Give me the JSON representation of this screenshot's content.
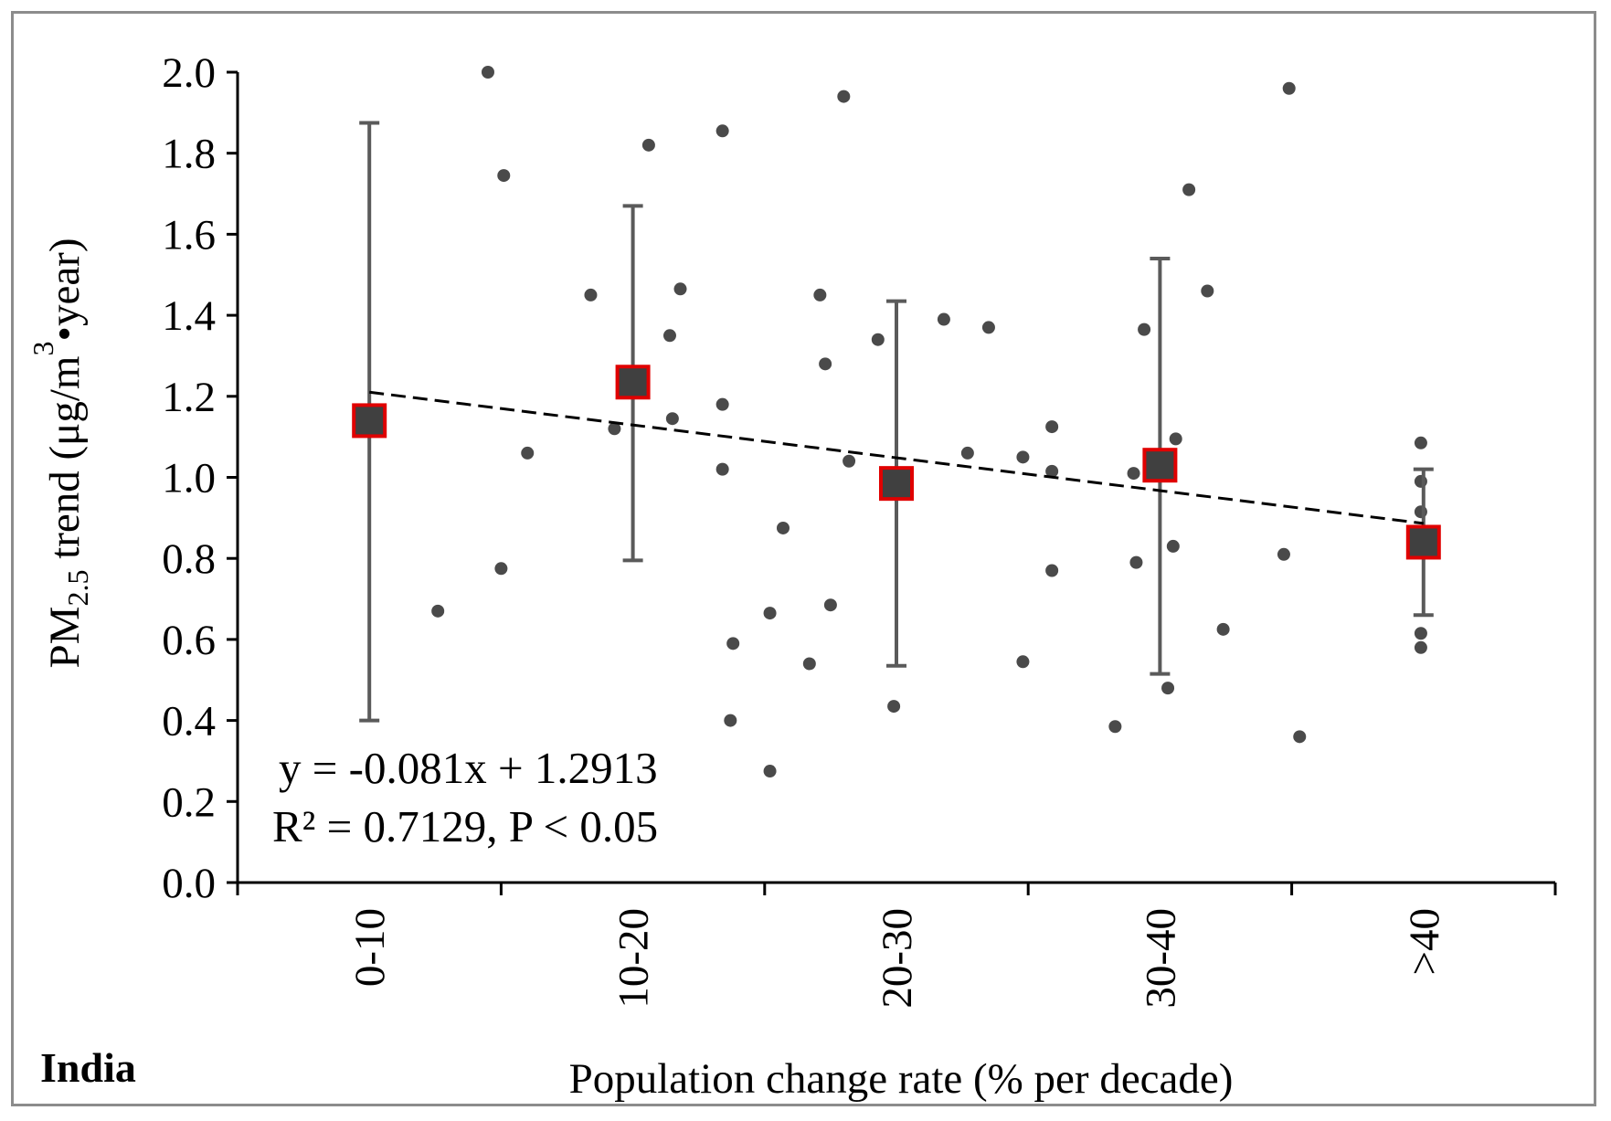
{
  "chart_data": {
    "type": "scatter",
    "region_label": "India",
    "ylabel_parts": [
      "PM",
      "2.5",
      " trend (μg/m",
      "3",
      "•year)"
    ],
    "xlabel": "Population change rate (% per decade)",
    "ylim": [
      0,
      2.0
    ],
    "yticks": [
      0.0,
      0.2,
      0.4,
      0.6,
      0.8,
      1.0,
      1.2,
      1.4,
      1.6,
      1.8,
      2.0
    ],
    "ytick_labels": [
      "0.0",
      "0.2",
      "0.4",
      "0.6",
      "0.8",
      "1.0",
      "1.2",
      "1.4",
      "1.6",
      "1.8",
      "2.0"
    ],
    "categories": [
      "0-10",
      "10-20",
      "20-30",
      "30-40",
      ">40"
    ],
    "means": [
      1.14,
      1.235,
      0.985,
      1.03,
      0.84
    ],
    "error_low": [
      0.4,
      0.795,
      0.535,
      0.515,
      0.66
    ],
    "error_high": [
      1.875,
      1.67,
      1.435,
      1.54,
      1.02
    ],
    "scatter_points": [
      {
        "x": 1.26,
        "y": 0.67
      },
      {
        "x": 1.45,
        "y": 2.0
      },
      {
        "x": 1.5,
        "y": 0.775
      },
      {
        "x": 1.51,
        "y": 1.745
      },
      {
        "x": 1.6,
        "y": 1.06
      },
      {
        "x": 1.84,
        "y": 1.45
      },
      {
        "x": 1.93,
        "y": 1.12
      },
      {
        "x": 2.06,
        "y": 1.82
      },
      {
        "x": 2.14,
        "y": 1.35
      },
      {
        "x": 2.15,
        "y": 1.145
      },
      {
        "x": 2.18,
        "y": 1.465
      },
      {
        "x": 2.34,
        "y": 1.855
      },
      {
        "x": 2.34,
        "y": 1.18
      },
      {
        "x": 2.34,
        "y": 1.02
      },
      {
        "x": 2.38,
        "y": 0.59
      },
      {
        "x": 2.37,
        "y": 0.4
      },
      {
        "x": 2.52,
        "y": 0.665
      },
      {
        "x": 2.52,
        "y": 0.275
      },
      {
        "x": 2.57,
        "y": 0.875
      },
      {
        "x": 2.67,
        "y": 0.54
      },
      {
        "x": 2.71,
        "y": 1.45
      },
      {
        "x": 2.73,
        "y": 1.28
      },
      {
        "x": 2.75,
        "y": 0.685
      },
      {
        "x": 2.8,
        "y": 1.94
      },
      {
        "x": 2.82,
        "y": 1.04
      },
      {
        "x": 2.93,
        "y": 1.34
      },
      {
        "x": 2.99,
        "y": 0.435
      },
      {
        "x": 3.18,
        "y": 1.39
      },
      {
        "x": 3.27,
        "y": 1.06
      },
      {
        "x": 3.35,
        "y": 1.37
      },
      {
        "x": 3.48,
        "y": 1.05
      },
      {
        "x": 3.48,
        "y": 0.545
      },
      {
        "x": 3.59,
        "y": 1.125
      },
      {
        "x": 3.59,
        "y": 1.015
      },
      {
        "x": 3.59,
        "y": 0.77
      },
      {
        "x": 3.83,
        "y": 0.385
      },
      {
        "x": 3.9,
        "y": 1.01
      },
      {
        "x": 3.91,
        "y": 0.79
      },
      {
        "x": 3.94,
        "y": 1.365
      },
      {
        "x": 4.03,
        "y": 0.48
      },
      {
        "x": 4.05,
        "y": 0.83
      },
      {
        "x": 4.06,
        "y": 1.095
      },
      {
        "x": 4.11,
        "y": 1.71
      },
      {
        "x": 4.18,
        "y": 1.46
      },
      {
        "x": 4.24,
        "y": 0.625
      },
      {
        "x": 4.47,
        "y": 0.81
      },
      {
        "x": 4.49,
        "y": 1.96
      },
      {
        "x": 4.53,
        "y": 0.36
      },
      {
        "x": 4.99,
        "y": 1.085
      },
      {
        "x": 4.99,
        "y": 0.99
      },
      {
        "x": 4.99,
        "y": 0.915
      },
      {
        "x": 4.99,
        "y": 0.615
      },
      {
        "x": 4.99,
        "y": 0.58
      }
    ],
    "trendline": {
      "slope": -0.081,
      "intercept": 1.2913,
      "x_start": 1,
      "x_end": 5
    },
    "equation": "y = -0.081x + 1.2913",
    "r_squared": "R² = 0.7129, P < 0.05",
    "colors": {
      "points": "#4a4a4a",
      "error_bars": "#5a5a5a",
      "mean_fill": "#404040",
      "mean_border": "#e00000",
      "trendline": "#000000",
      "axis": "#000000"
    }
  }
}
